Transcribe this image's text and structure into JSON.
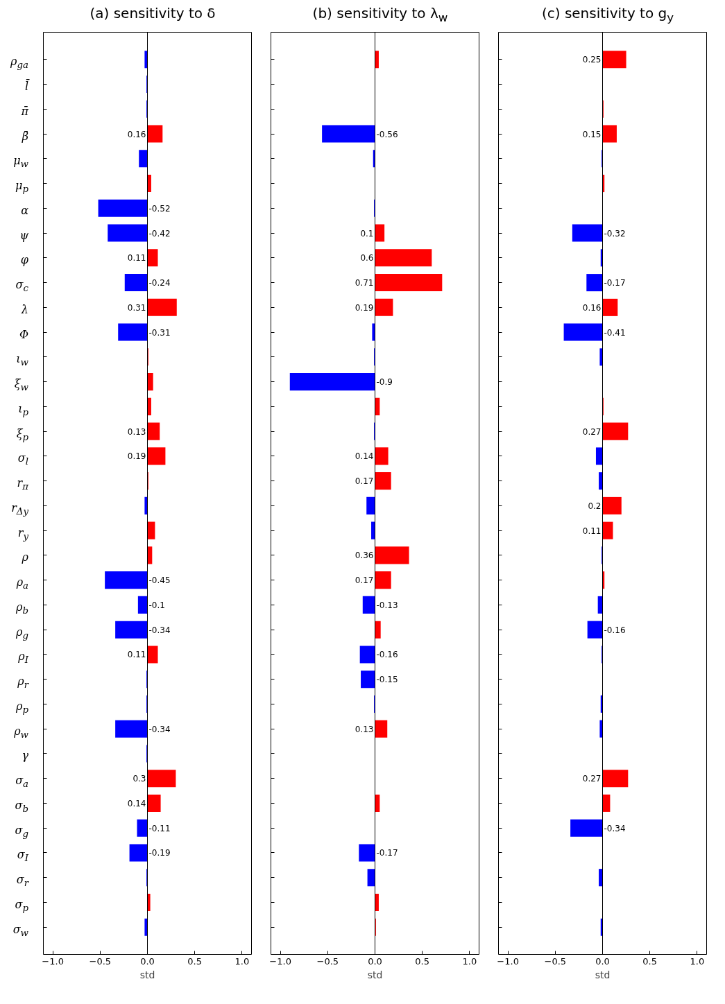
{
  "chart_data": [
    {
      "type": "bar",
      "orientation": "horizontal",
      "title": "(a) sensitivity to δ",
      "xlabel": "std",
      "categories": [
        "ρ$_{ga}$",
        "l̄",
        "π̄",
        "β̄",
        "μ$_{w}$",
        "μ$_{p}$",
        "α",
        "ψ",
        "φ",
        "σ$_{c}$",
        "λ",
        "Φ",
        "ι$_{w}$",
        "ξ$_{w}$",
        "ι$_{p}$",
        "ξ$_{p}$",
        "σ$_{l}$",
        "r$_{π}$",
        "r$_{Δy}$",
        "r$_{y}$",
        "ρ",
        "ρ$_{a}$",
        "ρ$_{b}$",
        "ρ$_{g}$",
        "ρ$_{I}$",
        "ρ$_{r}$",
        "ρ$_{p}$",
        "ρ$_{w}$",
        "γ",
        "σ$_{a}$",
        "σ$_{b}$",
        "σ$_{g}$",
        "σ$_{I}$",
        "σ$_{r}$",
        "σ$_{p}$",
        "σ$_{w}$"
      ],
      "values": [
        -0.03,
        -0.01,
        -0.01,
        0.16,
        -0.09,
        0.04,
        -0.52,
        -0.42,
        0.11,
        -0.24,
        0.31,
        -0.31,
        0.01,
        0.06,
        0.04,
        0.13,
        0.19,
        0.01,
        -0.03,
        0.08,
        0.05,
        -0.45,
        -0.1,
        -0.34,
        0.11,
        -0.01,
        -0.01,
        -0.34,
        -0.01,
        0.3,
        0.14,
        -0.11,
        -0.19,
        -0.01,
        0.03,
        -0.03
      ],
      "value_labels": [
        null,
        null,
        null,
        "0.16",
        null,
        null,
        "-0.52",
        "-0.42",
        "0.11",
        "-0.24",
        "0.31",
        "-0.31",
        null,
        null,
        null,
        "0.13",
        "0.19",
        null,
        null,
        null,
        null,
        "-0.45",
        "-0.1",
        "-0.34",
        "0.11",
        null,
        null,
        "-0.34",
        null,
        "0.3",
        "0.14",
        "-0.11",
        "-0.19",
        null,
        null,
        null
      ],
      "colors": [
        "#0000ff",
        "#0000ff",
        "#0000ff",
        "#ff0000",
        "#0000ff",
        "#ff0000",
        "#0000ff",
        "#0000ff",
        "#ff0000",
        "#0000ff",
        "#ff0000",
        "#0000ff",
        "#ff0000",
        "#ff0000",
        "#ff0000",
        "#ff0000",
        "#ff0000",
        "#ff0000",
        "#0000ff",
        "#ff0000",
        "#ff0000",
        "#0000ff",
        "#0000ff",
        "#0000ff",
        "#ff0000",
        "#0000ff",
        "#0000ff",
        "#0000ff",
        "#0000ff",
        "#ff0000",
        "#ff0000",
        "#0000ff",
        "#0000ff",
        "#0000ff",
        "#ff0000",
        "#0000ff"
      ],
      "xlim": [
        -1.1,
        1.1
      ],
      "xticks": [
        {
          "value": -1,
          "label": "−1.0"
        },
        {
          "value": -0.5,
          "label": "−0.5"
        },
        {
          "value": 0,
          "label": "0.0"
        },
        {
          "value": 0.5,
          "label": "0.5"
        },
        {
          "value": 1,
          "label": "1.0"
        }
      ],
      "ref_lines": [
        {
          "axis": "x",
          "value": 0,
          "color": "#000000"
        }
      ],
      "grid": false
    },
    {
      "type": "bar",
      "orientation": "horizontal",
      "title": "(b) sensitivity to λ$_{w}$",
      "xlabel": "std",
      "tick_labels": "x",
      "categories": [
        "ρ$_{ga}$",
        "l̄",
        "π̄",
        "β̄",
        "μ$_{w}$",
        "μ$_{p}$",
        "α",
        "ψ",
        "φ",
        "σ$_{c}$",
        "λ",
        "Φ",
        "ι$_{w}$",
        "ξ$_{w}$",
        "ι$_{p}$",
        "ξ$_{p}$",
        "σ$_{l}$",
        "r$_{π}$",
        "r$_{Δy}$",
        "r$_{y}$",
        "ρ",
        "ρ$_{a}$",
        "ρ$_{b}$",
        "ρ$_{g}$",
        "ρ$_{I}$",
        "ρ$_{r}$",
        "ρ$_{p}$",
        "ρ$_{w}$",
        "γ",
        "σ$_{a}$",
        "σ$_{b}$",
        "σ$_{g}$",
        "σ$_{I}$",
        "σ$_{r}$",
        "σ$_{p}$",
        "σ$_{w}$"
      ],
      "values": [
        0.04,
        null,
        null,
        -0.56,
        -0.02,
        null,
        -0.01,
        0.1,
        0.6,
        0.71,
        0.19,
        -0.03,
        -0.01,
        -0.9,
        0.05,
        -0.01,
        0.14,
        0.17,
        -0.09,
        -0.04,
        0.36,
        0.17,
        -0.13,
        0.06,
        -0.16,
        -0.15,
        -0.01,
        0.13,
        null,
        null,
        0.05,
        null,
        -0.17,
        -0.08,
        0.04,
        0.01
      ],
      "value_labels": [
        null,
        null,
        null,
        "-0.56",
        null,
        null,
        null,
        "0.1",
        "0.6",
        "0.71",
        "0.19",
        null,
        null,
        "-0.9",
        null,
        null,
        "0.14",
        "0.17",
        null,
        null,
        "0.36",
        "0.17",
        "-0.13",
        null,
        "-0.16",
        "-0.15",
        null,
        "0.13",
        null,
        null,
        null,
        null,
        "-0.17",
        null,
        null,
        null
      ],
      "colors": [
        "#ff0000",
        "#ff0000",
        "#ff0000",
        "#0000ff",
        "#0000ff",
        "#ff0000",
        "#0000ff",
        "#ff0000",
        "#ff0000",
        "#ff0000",
        "#ff0000",
        "#0000ff",
        "#0000ff",
        "#0000ff",
        "#ff0000",
        "#0000ff",
        "#ff0000",
        "#ff0000",
        "#0000ff",
        "#0000ff",
        "#ff0000",
        "#ff0000",
        "#0000ff",
        "#ff0000",
        "#0000ff",
        "#0000ff",
        "#0000ff",
        "#ff0000",
        "#ff0000",
        "#ff0000",
        "#ff0000",
        "#ff0000",
        "#0000ff",
        "#0000ff",
        "#ff0000",
        "#ff0000"
      ],
      "xlim": [
        -1.1,
        1.1
      ],
      "xticks": [
        {
          "value": -1,
          "label": "−1.0"
        },
        {
          "value": -0.5,
          "label": "−0.5"
        },
        {
          "value": 0,
          "label": "0.0"
        },
        {
          "value": 0.5,
          "label": "0.5"
        },
        {
          "value": 1,
          "label": "1.0"
        }
      ],
      "ref_lines": [
        {
          "axis": "x",
          "value": 0,
          "color": "#000000"
        }
      ],
      "grid": false
    },
    {
      "type": "bar",
      "orientation": "horizontal",
      "title": "(c) sensitivity to g$_{y}$",
      "xlabel": "std",
      "tick_labels": "x",
      "categories": [
        "ρ$_{ga}$",
        "l̄",
        "π̄",
        "β̄",
        "μ$_{w}$",
        "μ$_{p}$",
        "α",
        "ψ",
        "φ",
        "σ$_{c}$",
        "λ",
        "Φ",
        "ι$_{w}$",
        "ξ$_{w}$",
        "ι$_{p}$",
        "ξ$_{p}$",
        "σ$_{l}$",
        "r$_{π}$",
        "r$_{Δy}$",
        "r$_{y}$",
        "ρ",
        "ρ$_{a}$",
        "ρ$_{b}$",
        "ρ$_{g}$",
        "ρ$_{I}$",
        "ρ$_{r}$",
        "ρ$_{p}$",
        "ρ$_{w}$",
        "γ",
        "σ$_{a}$",
        "σ$_{b}$",
        "σ$_{g}$",
        "σ$_{I}$",
        "σ$_{r}$",
        "σ$_{p}$",
        "σ$_{w}$"
      ],
      "values": [
        0.25,
        null,
        0.01,
        0.15,
        -0.01,
        0.02,
        null,
        -0.32,
        -0.02,
        -0.17,
        0.16,
        -0.41,
        -0.03,
        null,
        0.01,
        0.27,
        -0.07,
        -0.04,
        0.2,
        0.11,
        -0.01,
        0.02,
        -0.05,
        -0.16,
        -0.01,
        null,
        -0.02,
        -0.03,
        null,
        0.27,
        0.08,
        -0.34,
        null,
        -0.04,
        null,
        -0.02
      ],
      "value_labels": [
        "0.25",
        null,
        null,
        "0.15",
        null,
        null,
        null,
        "-0.32",
        null,
        "-0.17",
        "0.16",
        "-0.41",
        null,
        null,
        null,
        "0.27",
        null,
        null,
        "0.2",
        "0.11",
        null,
        null,
        null,
        "-0.16",
        null,
        null,
        null,
        null,
        null,
        "0.27",
        null,
        "-0.34",
        null,
        null,
        null,
        null
      ],
      "colors": [
        "#ff0000",
        "#ff0000",
        "#ff0000",
        "#ff0000",
        "#0000ff",
        "#ff0000",
        "#ff0000",
        "#0000ff",
        "#0000ff",
        "#0000ff",
        "#ff0000",
        "#0000ff",
        "#0000ff",
        "#ff0000",
        "#ff0000",
        "#ff0000",
        "#0000ff",
        "#0000ff",
        "#ff0000",
        "#ff0000",
        "#0000ff",
        "#ff0000",
        "#0000ff",
        "#0000ff",
        "#0000ff",
        "#ff0000",
        "#0000ff",
        "#0000ff",
        "#ff0000",
        "#ff0000",
        "#ff0000",
        "#0000ff",
        "#ff0000",
        "#0000ff",
        "#ff0000",
        "#0000ff"
      ],
      "xlim": [
        -1.1,
        1.1
      ],
      "xticks": [
        {
          "value": -1,
          "label": "−1.0"
        },
        {
          "value": -0.5,
          "label": "−0.5"
        },
        {
          "value": 0,
          "label": "0.0"
        },
        {
          "value": 0.5,
          "label": "0.5"
        },
        {
          "value": 1,
          "label": "1.0"
        }
      ],
      "ref_lines": [
        {
          "axis": "x",
          "value": 0,
          "color": "#000000"
        }
      ],
      "grid": false
    }
  ]
}
